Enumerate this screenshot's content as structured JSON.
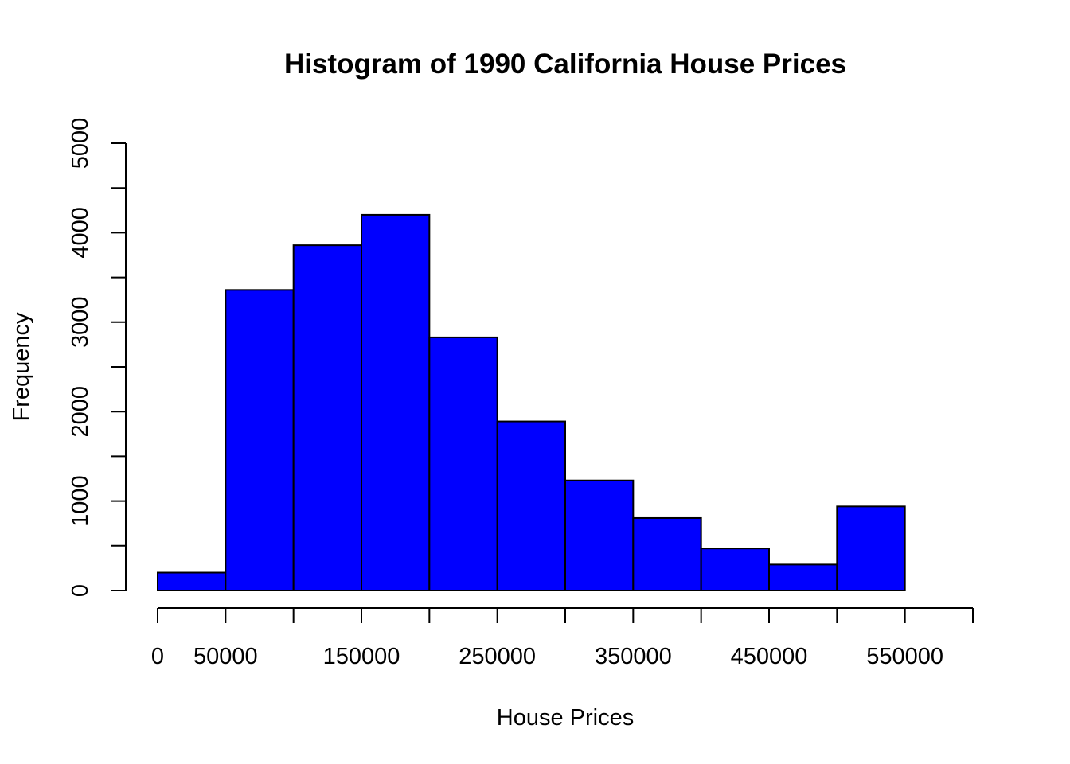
{
  "chart_data": {
    "type": "bar",
    "title": "Histogram of 1990 California House Prices",
    "xlabel": "House Prices",
    "ylabel": "Frequency",
    "bar_color": "#0000ff",
    "bins": [
      {
        "from": 0,
        "to": 50000,
        "count": 200
      },
      {
        "from": 50000,
        "to": 100000,
        "count": 3360
      },
      {
        "from": 100000,
        "to": 150000,
        "count": 3860
      },
      {
        "from": 150000,
        "to": 200000,
        "count": 4200
      },
      {
        "from": 200000,
        "to": 250000,
        "count": 2830
      },
      {
        "from": 250000,
        "to": 300000,
        "count": 1890
      },
      {
        "from": 300000,
        "to": 350000,
        "count": 1230
      },
      {
        "from": 350000,
        "to": 400000,
        "count": 810
      },
      {
        "from": 400000,
        "to": 450000,
        "count": 470
      },
      {
        "from": 450000,
        "to": 500000,
        "count": 290
      },
      {
        "from": 500000,
        "to": 550000,
        "count": 940
      }
    ],
    "xlim": [
      0,
      600000
    ],
    "ylim": [
      0,
      5000
    ],
    "x_ticks": [
      0,
      50000,
      100000,
      150000,
      200000,
      250000,
      300000,
      350000,
      400000,
      450000,
      500000,
      550000,
      600000
    ],
    "x_tick_labels": [
      "0",
      "50000",
      "150000",
      "250000",
      "350000",
      "450000",
      "550000"
    ],
    "x_tick_label_values": [
      0,
      50000,
      150000,
      250000,
      350000,
      450000,
      550000
    ],
    "y_ticks": [
      0,
      500,
      1000,
      1500,
      2000,
      2500,
      3000,
      3500,
      4000,
      4500,
      5000
    ],
    "y_tick_labels": [
      "0",
      "1000",
      "2000",
      "3000",
      "4000",
      "5000"
    ],
    "y_tick_label_values": [
      0,
      1000,
      2000,
      3000,
      4000,
      5000
    ],
    "grid": false
  }
}
